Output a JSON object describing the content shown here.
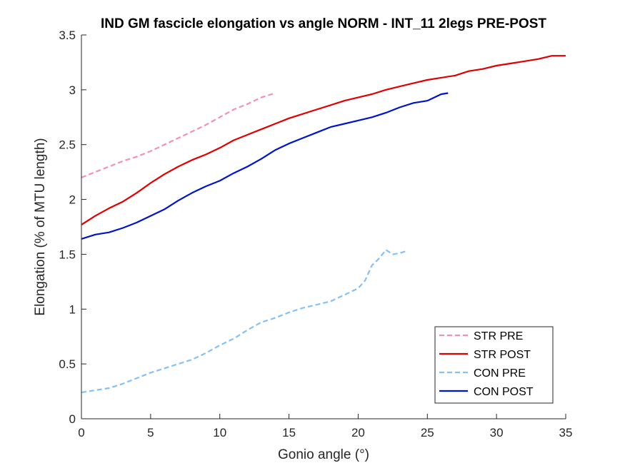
{
  "chart_data": {
    "type": "line",
    "title": "IND GM fascicle elongation vs angle NORM - INT_11 2legs PRE-POST",
    "xlabel": "Gonio angle (°)",
    "ylabel": "Elongation (% of MTU length)",
    "xlim": [
      0,
      35
    ],
    "ylim": [
      0,
      3.5
    ],
    "xticks": [
      0,
      5,
      10,
      15,
      20,
      25,
      30,
      35
    ],
    "yticks": [
      0,
      0.5,
      1,
      1.5,
      2,
      2.5,
      3,
      3.5
    ],
    "xtick_labels": [
      "0",
      "5",
      "10",
      "15",
      "20",
      "25",
      "30",
      "35"
    ],
    "ytick_labels": [
      "0",
      "0.5",
      "1",
      "1.5",
      "2",
      "2.5",
      "3",
      "3.5"
    ],
    "grid": false,
    "legend_position": "bottom-right",
    "series": [
      {
        "name": "STR PRE",
        "color": "#f291b4",
        "style": "dashed",
        "x": [
          0,
          1,
          2,
          3,
          4,
          5,
          6,
          7,
          8,
          9,
          10,
          11,
          12,
          13,
          14
        ],
        "y": [
          2.2,
          2.25,
          2.3,
          2.35,
          2.39,
          2.44,
          2.5,
          2.56,
          2.62,
          2.68,
          2.75,
          2.82,
          2.87,
          2.93,
          2.97
        ]
      },
      {
        "name": "STR POST",
        "color": "#e00000",
        "style": "solid",
        "x": [
          0,
          1,
          2,
          3,
          4,
          5,
          6,
          7,
          8,
          9,
          10,
          11,
          12,
          13,
          14,
          15,
          16,
          17,
          18,
          19,
          20,
          21,
          22,
          23,
          24,
          25,
          26,
          27,
          28,
          29,
          30,
          31,
          32,
          33,
          34,
          35
        ],
        "y": [
          1.77,
          1.85,
          1.92,
          1.98,
          2.06,
          2.15,
          2.23,
          2.3,
          2.36,
          2.41,
          2.47,
          2.54,
          2.59,
          2.64,
          2.69,
          2.74,
          2.78,
          2.82,
          2.86,
          2.9,
          2.93,
          2.96,
          3.0,
          3.03,
          3.06,
          3.09,
          3.11,
          3.13,
          3.17,
          3.19,
          3.22,
          3.24,
          3.26,
          3.28,
          3.31,
          3.31
        ]
      },
      {
        "name": "CON PRE",
        "color": "#85c1f5",
        "style": "dashed",
        "x": [
          0,
          1,
          2,
          3,
          4,
          5,
          6,
          7,
          8,
          9,
          10,
          11,
          12,
          13,
          14,
          15,
          16,
          17,
          18,
          19,
          20,
          20.5,
          21,
          21.5,
          22,
          22.5,
          23,
          23.5
        ],
        "y": [
          0.24,
          0.26,
          0.28,
          0.32,
          0.37,
          0.42,
          0.46,
          0.5,
          0.54,
          0.6,
          0.67,
          0.73,
          0.81,
          0.88,
          0.92,
          0.97,
          1.01,
          1.04,
          1.07,
          1.13,
          1.19,
          1.26,
          1.4,
          1.46,
          1.54,
          1.5,
          1.51,
          1.53
        ]
      },
      {
        "name": "CON POST",
        "color": "#0014c8",
        "style": "solid",
        "x": [
          0,
          1,
          2,
          3,
          4,
          5,
          6,
          7,
          8,
          9,
          10,
          11,
          12,
          13,
          14,
          15,
          16,
          17,
          18,
          19,
          20,
          21,
          22,
          23,
          24,
          25,
          26,
          26.5
        ],
        "y": [
          1.64,
          1.68,
          1.7,
          1.74,
          1.79,
          1.85,
          1.91,
          1.99,
          2.06,
          2.12,
          2.17,
          2.24,
          2.3,
          2.37,
          2.45,
          2.51,
          2.56,
          2.61,
          2.66,
          2.69,
          2.72,
          2.75,
          2.79,
          2.84,
          2.88,
          2.9,
          2.96,
          2.97
        ]
      }
    ]
  }
}
